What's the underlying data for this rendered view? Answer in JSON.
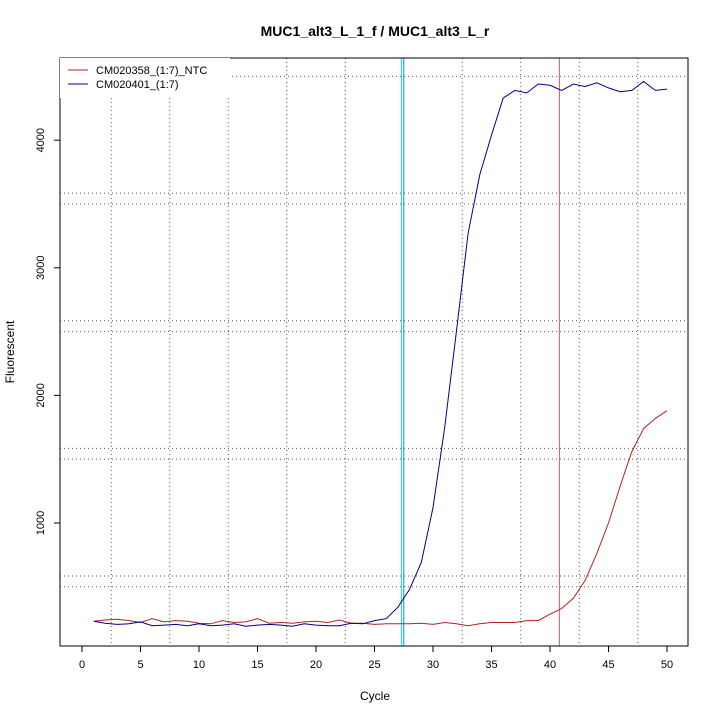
{
  "chart_data": {
    "type": "line",
    "title": "MUC1_alt3_L_1_f / MUC1_alt3_L_r",
    "xlabel": "Cycle",
    "ylabel": "Fluorescent",
    "xlim": [
      1,
      50
    ],
    "ylim": [
      130,
      4550
    ],
    "x_ticks": [
      0,
      5,
      10,
      15,
      20,
      25,
      30,
      35,
      40,
      45,
      50
    ],
    "y_ticks": [
      1000,
      2000,
      3000,
      4000
    ],
    "grid": "dotted, minor vertical lines every cycle 2.5 offset and horizontal lines between major ticks",
    "legend_position": "top-left",
    "series": [
      {
        "name": "CM020358_(1:7)_NTC",
        "color": "#b22222",
        "x": [
          1,
          2,
          3,
          4,
          5,
          6,
          7,
          8,
          9,
          10,
          11,
          12,
          13,
          14,
          15,
          16,
          17,
          18,
          19,
          20,
          21,
          22,
          23,
          24,
          25,
          26,
          27,
          28,
          29,
          30,
          31,
          32,
          33,
          34,
          35,
          36,
          37,
          38,
          39,
          40,
          41,
          42,
          43,
          44,
          45,
          46,
          47,
          48,
          49,
          50
        ],
        "values": [
          230,
          240,
          245,
          235,
          220,
          250,
          225,
          235,
          230,
          215,
          210,
          235,
          220,
          225,
          250,
          215,
          220,
          215,
          225,
          230,
          220,
          240,
          215,
          215,
          205,
          210,
          210,
          210,
          215,
          205,
          220,
          210,
          195,
          210,
          220,
          220,
          220,
          235,
          235,
          285,
          330,
          410,
          550,
          760,
          1000,
          1290,
          1560,
          1740,
          1820,
          1880
        ]
      },
      {
        "name": "CM020401_(1:7)",
        "color": "#00008b",
        "x": [
          1,
          2,
          3,
          4,
          5,
          6,
          7,
          8,
          9,
          10,
          11,
          12,
          13,
          14,
          15,
          16,
          17,
          18,
          19,
          20,
          21,
          22,
          23,
          24,
          25,
          26,
          27,
          28,
          29,
          30,
          31,
          32,
          33,
          34,
          35,
          36,
          37,
          38,
          39,
          40,
          41,
          42,
          43,
          44,
          45,
          46,
          47,
          48,
          49,
          50
        ],
        "values": [
          230,
          215,
          205,
          210,
          225,
          195,
          200,
          205,
          195,
          210,
          195,
          200,
          210,
          190,
          200,
          205,
          200,
          190,
          210,
          200,
          195,
          195,
          215,
          210,
          235,
          250,
          340,
          480,
          690,
          1120,
          1750,
          2500,
          3270,
          3730,
          4040,
          4330,
          4390,
          4370,
          4440,
          4430,
          4390,
          4440,
          4420,
          4450,
          4410,
          4380,
          4390,
          4460,
          4390,
          4400
        ]
      }
    ],
    "vertical_lines": [
      {
        "x": 27.3,
        "color": "#00e5ee"
      },
      {
        "x": 27.5,
        "color": "#1e90ff"
      },
      {
        "x": 40.8,
        "color": "#cd5c5c"
      }
    ]
  }
}
